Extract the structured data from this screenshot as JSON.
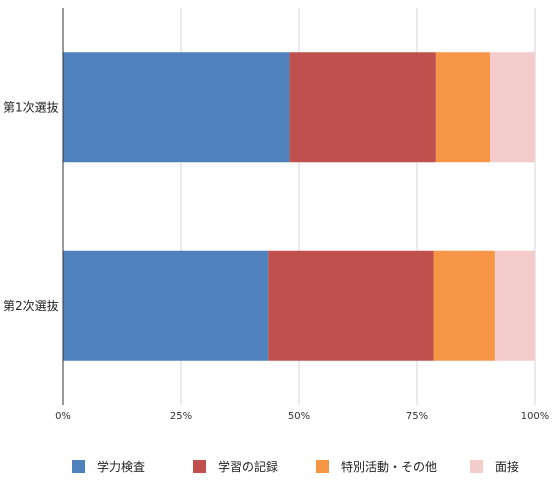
{
  "chart_data": {
    "type": "bar",
    "orientation": "horizontal",
    "stacked": true,
    "percent": true,
    "categories": [
      "第1次選抜",
      "第2次選抜"
    ],
    "series": [
      {
        "name": "学力検査",
        "values": [
          48,
          43.5
        ],
        "color": "#4f81bd"
      },
      {
        "name": "学習の記録",
        "values": [
          31,
          35
        ],
        "color": "#c0504d"
      },
      {
        "name": "特別活動・その他",
        "values": [
          11.5,
          13
        ],
        "color": "#f79646"
      },
      {
        "name": "面接",
        "values": [
          9.5,
          8.5
        ],
        "color": "#f4cccc"
      }
    ],
    "xlim": [
      0,
      100
    ],
    "xticks": [
      "0%",
      "25%",
      "50%",
      "75%",
      "100%"
    ],
    "grid": true,
    "legend": "bottom"
  }
}
